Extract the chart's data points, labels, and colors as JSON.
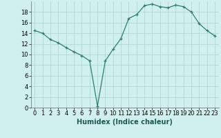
{
  "x": [
    0,
    1,
    2,
    3,
    4,
    5,
    6,
    7,
    8,
    9,
    10,
    11,
    12,
    13,
    14,
    15,
    16,
    17,
    18,
    19,
    20,
    21,
    22,
    23
  ],
  "y": [
    14.5,
    14.0,
    12.8,
    12.2,
    11.3,
    10.5,
    9.8,
    8.8,
    0.3,
    8.8,
    11.0,
    13.0,
    16.8,
    17.5,
    19.2,
    19.5,
    19.0,
    18.8,
    19.3,
    19.0,
    18.0,
    15.8,
    14.5,
    13.5
  ],
  "line_color": "#2e7d6e",
  "marker": "+",
  "marker_size": 3,
  "bg_color": "#cff0ee",
  "grid_color": "#b0d8d0",
  "xlabel": "Humidex (Indice chaleur)",
  "xlim": [
    -0.5,
    23.5
  ],
  "ylim": [
    0,
    20
  ],
  "yticks": [
    0,
    2,
    4,
    6,
    8,
    10,
    12,
    14,
    16,
    18
  ],
  "xticks": [
    0,
    1,
    2,
    3,
    4,
    5,
    6,
    7,
    8,
    9,
    10,
    11,
    12,
    13,
    14,
    15,
    16,
    17,
    18,
    19,
    20,
    21,
    22,
    23
  ],
  "label_fontsize": 7,
  "tick_fontsize": 6
}
